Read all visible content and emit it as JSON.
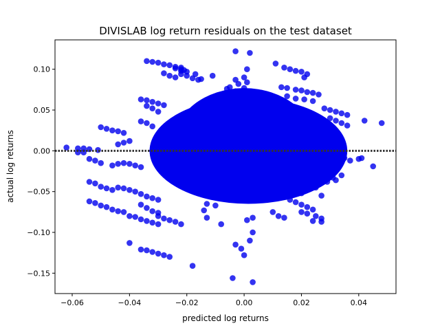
{
  "chart_data": {
    "type": "scatter",
    "title": "DIVISLAB log return residuals on the test dataset",
    "xlabel": "predicted log returns",
    "ylabel": "actual log returns",
    "xlim": [
      -0.066,
      0.053
    ],
    "ylim": [
      -0.175,
      0.136
    ],
    "xticks": [
      -0.06,
      -0.04,
      -0.02,
      0.0,
      0.02,
      0.04
    ],
    "xtick_labels": [
      "−0.06",
      "−0.04",
      "−0.02",
      "0.00",
      "0.02",
      "0.04"
    ],
    "yticks": [
      0.1,
      0.05,
      0.0,
      -0.05,
      -0.1,
      -0.15
    ],
    "ytick_labels": [
      "0.10",
      "0.05",
      "0.00",
      "−0.05",
      "−0.10",
      "−0.15"
    ],
    "grid": false,
    "legend": false,
    "reference_line": {
      "y": 0.0,
      "style": "dotted",
      "color": "#333333"
    },
    "marker_color": "#0000ee",
    "marker_opacity": 0.8,
    "dense_cluster": {
      "x_range": [
        -0.033,
        0.036
      ],
      "y_range": [
        -0.065,
        0.065
      ]
    },
    "points": [
      [
        -0.062,
        0.004
      ],
      [
        -0.058,
        0.003
      ],
      [
        -0.056,
        0.003
      ],
      [
        -0.054,
        0.002
      ],
      [
        -0.051,
        0.001
      ],
      [
        -0.058,
        -0.002
      ],
      [
        -0.056,
        -0.002
      ],
      [
        -0.05,
        0.029
      ],
      [
        -0.048,
        0.027
      ],
      [
        -0.046,
        0.025
      ],
      [
        -0.044,
        0.024
      ],
      [
        -0.042,
        0.022
      ],
      [
        -0.054,
        -0.01
      ],
      [
        -0.052,
        -0.012
      ],
      [
        -0.05,
        -0.015
      ],
      [
        -0.054,
        -0.038
      ],
      [
        -0.052,
        -0.04
      ],
      [
        -0.05,
        -0.044
      ],
      [
        -0.048,
        -0.046
      ],
      [
        -0.046,
        -0.048
      ],
      [
        -0.054,
        -0.062
      ],
      [
        -0.052,
        -0.064
      ],
      [
        -0.05,
        -0.067
      ],
      [
        -0.048,
        -0.069
      ],
      [
        -0.046,
        -0.072
      ],
      [
        -0.044,
        -0.074
      ],
      [
        -0.042,
        -0.075
      ],
      [
        -0.044,
        -0.045
      ],
      [
        -0.042,
        -0.046
      ],
      [
        -0.04,
        -0.048
      ],
      [
        -0.038,
        -0.05
      ],
      [
        -0.036,
        -0.053
      ],
      [
        -0.034,
        -0.056
      ],
      [
        -0.032,
        -0.058
      ],
      [
        -0.03,
        -0.06
      ],
      [
        -0.046,
        -0.018
      ],
      [
        -0.044,
        -0.016
      ],
      [
        -0.042,
        -0.015
      ],
      [
        -0.04,
        -0.016
      ],
      [
        -0.038,
        -0.018
      ],
      [
        -0.036,
        -0.02
      ],
      [
        -0.044,
        0.008
      ],
      [
        -0.042,
        0.01
      ],
      [
        -0.04,
        0.012
      ],
      [
        -0.04,
        -0.08
      ],
      [
        -0.038,
        -0.081
      ],
      [
        -0.036,
        -0.084
      ],
      [
        -0.034,
        -0.086
      ],
      [
        -0.032,
        -0.088
      ],
      [
        -0.03,
        -0.09
      ],
      [
        -0.04,
        -0.113
      ],
      [
        -0.036,
        -0.121
      ],
      [
        -0.034,
        -0.122
      ],
      [
        -0.032,
        -0.124
      ],
      [
        -0.03,
        -0.126
      ],
      [
        -0.028,
        -0.128
      ],
      [
        -0.026,
        -0.13
      ],
      [
        -0.036,
        0.063
      ],
      [
        -0.034,
        0.062
      ],
      [
        -0.032,
        0.06
      ],
      [
        -0.03,
        0.058
      ],
      [
        -0.028,
        0.056
      ],
      [
        -0.034,
        0.055
      ],
      [
        -0.032,
        0.052
      ],
      [
        -0.03,
        0.048
      ],
      [
        -0.036,
        0.036
      ],
      [
        -0.034,
        0.034
      ],
      [
        -0.032,
        0.03
      ],
      [
        -0.036,
        -0.066
      ],
      [
        -0.034,
        -0.07
      ],
      [
        -0.032,
        -0.074
      ],
      [
        -0.03,
        -0.076
      ],
      [
        -0.03,
        -0.08
      ],
      [
        -0.028,
        -0.083
      ],
      [
        -0.026,
        -0.085
      ],
      [
        -0.024,
        -0.087
      ],
      [
        -0.022,
        -0.09
      ],
      [
        -0.034,
        0.11
      ],
      [
        -0.032,
        0.109
      ],
      [
        -0.03,
        0.108
      ],
      [
        -0.028,
        0.106
      ],
      [
        -0.026,
        0.105
      ],
      [
        -0.024,
        0.101
      ],
      [
        -0.022,
        0.1
      ],
      [
        -0.02,
        0.097
      ],
      [
        -0.022,
        0.094
      ],
      [
        -0.02,
        0.092
      ],
      [
        -0.028,
        0.095
      ],
      [
        -0.026,
        0.092
      ],
      [
        -0.024,
        0.09
      ],
      [
        -0.018,
        0.089
      ],
      [
        -0.016,
        0.087
      ],
      [
        -0.024,
        0.103
      ],
      [
        -0.022,
        0.102
      ],
      [
        -0.022,
        0.098
      ],
      [
        -0.021,
        0.099
      ],
      [
        -0.017,
        0.094
      ],
      [
        -0.011,
        0.092
      ],
      [
        -0.015,
        0.088
      ],
      [
        -0.018,
        -0.141
      ],
      [
        -0.013,
        -0.065
      ],
      [
        -0.013,
        -0.082
      ],
      [
        -0.014,
        -0.073
      ],
      [
        -0.01,
        -0.067
      ],
      [
        -0.008,
        -0.09
      ],
      [
        -0.006,
        0.076
      ],
      [
        -0.003,
        0.073
      ],
      [
        -0.003,
        0.087
      ],
      [
        -0.005,
        0.078
      ],
      [
        -0.003,
        0.122
      ],
      [
        0.001,
        0.1
      ],
      [
        -0.002,
        0.082
      ],
      [
        0.002,
        0.12
      ],
      [
        0.001,
        0.084
      ],
      [
        0.0,
        0.09
      ],
      [
        0.0,
        0.077
      ],
      [
        -0.003,
        -0.115
      ],
      [
        -0.004,
        -0.156
      ],
      [
        0.003,
        -0.161
      ],
      [
        0.0,
        -0.128
      ],
      [
        -0.001,
        -0.12
      ],
      [
        0.002,
        -0.11
      ],
      [
        0.001,
        -0.085
      ],
      [
        0.003,
        -0.1
      ],
      [
        0.003,
        -0.082
      ],
      [
        0.011,
        0.107
      ],
      [
        0.014,
        0.102
      ],
      [
        0.016,
        0.1
      ],
      [
        0.018,
        0.098
      ],
      [
        0.02,
        0.097
      ],
      [
        0.022,
        0.094
      ],
      [
        0.021,
        0.09
      ],
      [
        0.013,
        0.078
      ],
      [
        0.015,
        0.077
      ],
      [
        0.018,
        0.075
      ],
      [
        0.02,
        0.074
      ],
      [
        0.022,
        0.072
      ],
      [
        0.024,
        0.071
      ],
      [
        0.026,
        0.069
      ],
      [
        0.015,
        0.067
      ],
      [
        0.018,
        0.064
      ],
      [
        0.021,
        0.063
      ],
      [
        0.024,
        0.061
      ],
      [
        0.028,
        0.052
      ],
      [
        0.03,
        0.05
      ],
      [
        0.032,
        0.048
      ],
      [
        0.034,
        0.046
      ],
      [
        0.036,
        0.044
      ],
      [
        0.03,
        0.04
      ],
      [
        0.032,
        0.037
      ],
      [
        0.034,
        0.034
      ],
      [
        0.036,
        0.031
      ],
      [
        0.042,
        0.037
      ],
      [
        0.048,
        0.034
      ],
      [
        0.035,
        -0.009
      ],
      [
        0.037,
        -0.012
      ],
      [
        0.04,
        -0.01
      ],
      [
        0.041,
        -0.009
      ],
      [
        0.045,
        -0.019
      ],
      [
        0.034,
        -0.03
      ],
      [
        0.031,
        -0.033
      ],
      [
        0.032,
        -0.036
      ],
      [
        0.029,
        -0.038
      ],
      [
        0.025,
        -0.045
      ],
      [
        0.022,
        -0.048
      ],
      [
        0.02,
        -0.052
      ],
      [
        0.027,
        -0.055
      ],
      [
        0.016,
        -0.06
      ],
      [
        0.018,
        -0.063
      ],
      [
        0.02,
        -0.066
      ],
      [
        0.022,
        -0.069
      ],
      [
        0.024,
        -0.072
      ],
      [
        0.02,
        -0.075
      ],
      [
        0.022,
        -0.077
      ],
      [
        0.025,
        -0.08
      ],
      [
        0.027,
        -0.083
      ],
      [
        0.027,
        -0.087
      ],
      [
        0.024,
        -0.086
      ],
      [
        0.01,
        -0.075
      ],
      [
        0.012,
        -0.08
      ],
      [
        0.014,
        -0.082
      ]
    ]
  }
}
